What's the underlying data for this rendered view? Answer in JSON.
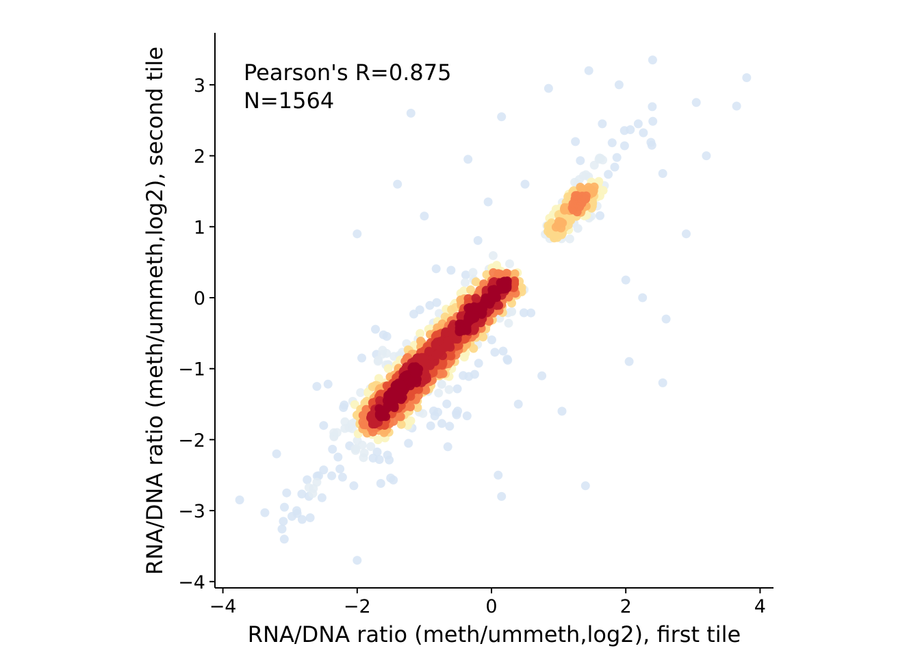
{
  "chart_data": {
    "type": "scatter",
    "title": "",
    "xlabel": "RNA/DNA ratio (meth/ummeth,log2), first tile",
    "ylabel": "RNA/DNA ratio (meth/ummeth,log2), second tile",
    "xlim": [
      -4.1,
      4.2
    ],
    "ylim": [
      -4.1,
      3.7
    ],
    "x_ticks": [
      -4,
      -2,
      0,
      2,
      4
    ],
    "y_ticks": [
      -4,
      -3,
      -2,
      -1,
      0,
      1,
      2,
      3
    ],
    "x_tick_labels": [
      "−4",
      "−2",
      "0",
      "2",
      "4"
    ],
    "y_tick_labels": [
      "−4",
      "−3",
      "−2",
      "−1",
      "0",
      "1",
      "2",
      "3"
    ],
    "grid": false,
    "legend": null,
    "color_encoding": "point density (low = light blue, high = dark red)",
    "colormap": [
      "#d6e4f5",
      "#e3ecf3",
      "#fbf4c0",
      "#fdd98a",
      "#fdb366",
      "#f6804d",
      "#e34e33",
      "#c01f2c",
      "#a00026"
    ],
    "annotations": [
      "Pearson's R=0.875",
      "N=1564"
    ],
    "statistics": {
      "pearson_r": 0.875,
      "n": 1564
    },
    "clusters": [
      {
        "name": "main diagonal cluster",
        "center": [
          -0.6,
          -0.5
        ],
        "extent_x": [
          -2.0,
          0.4
        ],
        "extent_y": [
          -1.9,
          0.3
        ]
      },
      {
        "name": "upper-right cluster",
        "center": [
          1.2,
          1.15
        ],
        "extent_x": [
          0.7,
          1.6
        ],
        "extent_y": [
          0.8,
          1.6
        ]
      }
    ],
    "sample_points": [
      [
        -3.75,
        -2.85
      ],
      [
        -3.2,
        -2.2
      ],
      [
        -3.1,
        -3.15
      ],
      [
        -3.05,
        -2.75
      ],
      [
        -2.9,
        -3.0
      ],
      [
        -2.7,
        -3.1
      ],
      [
        -2.6,
        -2.6
      ],
      [
        -2.5,
        -1.8
      ],
      [
        -2.3,
        -1.9
      ],
      [
        -2.05,
        -2.65
      ],
      [
        -2.0,
        -3.7
      ],
      [
        -2.0,
        0.9
      ],
      [
        -1.4,
        1.6
      ],
      [
        -1.2,
        2.6
      ],
      [
        -1.0,
        1.15
      ],
      [
        -0.35,
        1.95
      ],
      [
        0.15,
        2.55
      ],
      [
        0.1,
        -2.5
      ],
      [
        0.15,
        -2.8
      ],
      [
        -0.05,
        1.35
      ],
      [
        0.5,
        1.6
      ],
      [
        0.85,
        2.95
      ],
      [
        1.25,
        2.2
      ],
      [
        1.45,
        3.2
      ],
      [
        1.6,
        1.95
      ],
      [
        1.65,
        2.45
      ],
      [
        1.9,
        3.0
      ],
      [
        2.0,
        0.25
      ],
      [
        2.05,
        -0.9
      ],
      [
        2.25,
        0.0
      ],
      [
        2.4,
        3.35
      ],
      [
        2.55,
        1.75
      ],
      [
        2.55,
        -1.2
      ],
      [
        2.6,
        -0.3
      ],
      [
        2.9,
        0.9
      ],
      [
        3.05,
        2.75
      ],
      [
        3.2,
        2.0
      ],
      [
        3.65,
        2.7
      ],
      [
        3.8,
        3.1
      ],
      [
        1.4,
        -2.65
      ],
      [
        1.05,
        -1.6
      ],
      [
        0.75,
        -1.1
      ],
      [
        -0.65,
        -2.1
      ],
      [
        0.4,
        -1.5
      ],
      [
        -2.6,
        -1.25
      ]
    ]
  }
}
